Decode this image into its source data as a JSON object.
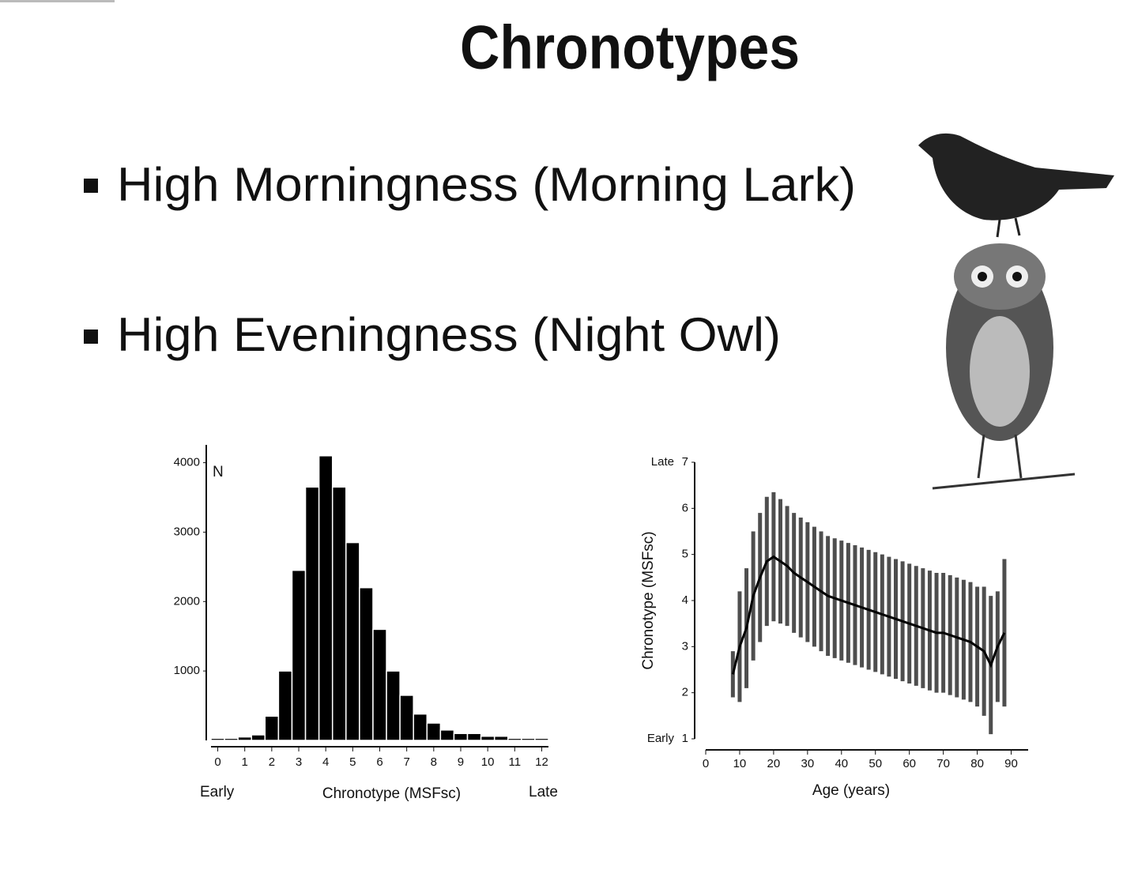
{
  "title": "Chronotypes",
  "bullets": [
    "High Morningness (Morning Lark)",
    "High Eveningness (Night Owl)"
  ],
  "chart_data": [
    {
      "type": "histogram",
      "y_label": "N",
      "x_labels": [
        "Early",
        "Chronotype (MSFsc)",
        "Late"
      ],
      "bins": [
        -0.25,
        0.25,
        0.75,
        1.25,
        1.75,
        2.25,
        2.75,
        3.25,
        3.75,
        4.25,
        4.75,
        5.25,
        5.75,
        6.25,
        6.75,
        7.25,
        7.75,
        8.25,
        8.75,
        9.25,
        9.75,
        10.25,
        10.75,
        11.25,
        11.75,
        12.25
      ],
      "values": [
        30,
        30,
        50,
        80,
        350,
        1000,
        2450,
        3650,
        4100,
        3650,
        2850,
        2200,
        1600,
        1000,
        650,
        380,
        250,
        150,
        100,
        100,
        60,
        60,
        30,
        30,
        30
      ],
      "color": "#000000",
      "xlim": [
        -0.25,
        12.25
      ],
      "xticks": [
        0,
        1,
        2,
        3,
        4,
        5,
        6,
        7,
        8,
        9,
        10,
        11,
        12
      ],
      "ylim": [
        0,
        4200
      ],
      "yticks": [
        1000,
        2000,
        3000,
        4000
      ]
    },
    {
      "type": "errorbar",
      "x_label": "Age (years)",
      "y_label": "Chronotype (MSFsc)",
      "y_end_labels": [
        "Early",
        "Late"
      ],
      "x": [
        8,
        10,
        12,
        14,
        16,
        18,
        20,
        22,
        24,
        26,
        28,
        30,
        32,
        34,
        36,
        38,
        40,
        42,
        44,
        46,
        48,
        50,
        52,
        54,
        56,
        58,
        60,
        62,
        64,
        66,
        68,
        70,
        72,
        74,
        76,
        78,
        80,
        82,
        84,
        86,
        88
      ],
      "values": [
        2.4,
        3.0,
        3.4,
        4.1,
        4.5,
        4.85,
        4.95,
        4.85,
        4.75,
        4.6,
        4.5,
        4.4,
        4.3,
        4.2,
        4.1,
        4.05,
        4.0,
        3.95,
        3.9,
        3.85,
        3.8,
        3.75,
        3.7,
        3.65,
        3.6,
        3.55,
        3.5,
        3.45,
        3.4,
        3.35,
        3.3,
        3.3,
        3.25,
        3.2,
        3.15,
        3.1,
        3.0,
        2.9,
        2.6,
        3.0,
        3.3
      ],
      "errors": [
        0.5,
        1.2,
        1.3,
        1.4,
        1.4,
        1.4,
        1.4,
        1.35,
        1.3,
        1.3,
        1.3,
        1.3,
        1.3,
        1.3,
        1.3,
        1.3,
        1.3,
        1.3,
        1.3,
        1.3,
        1.3,
        1.3,
        1.3,
        1.3,
        1.3,
        1.3,
        1.3,
        1.3,
        1.3,
        1.3,
        1.3,
        1.3,
        1.3,
        1.3,
        1.3,
        1.3,
        1.3,
        1.4,
        1.5,
        1.2,
        1.6
      ],
      "color": "#222222",
      "xlim": [
        0,
        95
      ],
      "xticks": [
        0,
        10,
        20,
        30,
        40,
        50,
        60,
        70,
        80,
        90
      ],
      "ylim": [
        1,
        7
      ],
      "yticks": [
        1,
        2,
        3,
        4,
        5,
        6,
        7
      ]
    }
  ]
}
